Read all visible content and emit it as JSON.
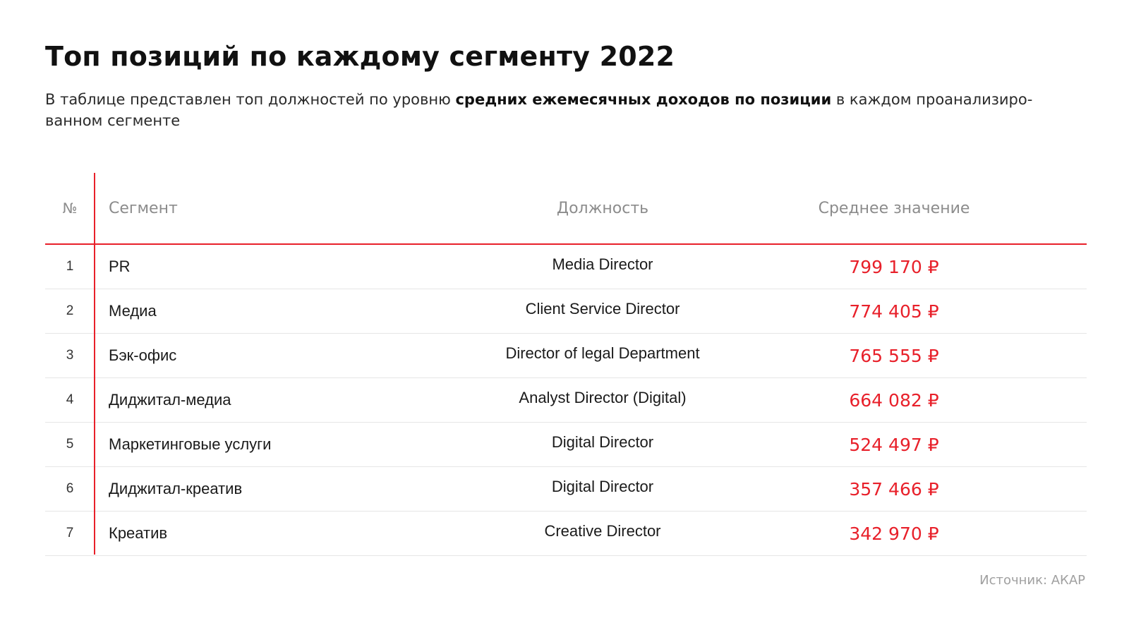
{
  "title": "Топ позиций по каждому сегменту 2022",
  "subtitle": {
    "before": "В таблице представлен топ должностей по уровню ",
    "bold": "средних ежемесячных доходов по позиции",
    "after": " в каждом проанализиро-ванном сегменте"
  },
  "table": {
    "headers": {
      "num": "№",
      "segment": "Сегмент",
      "position": "Должность",
      "value": "Среднее значение"
    },
    "rows": [
      {
        "num": "1",
        "segment": "PR",
        "position": "Media Director",
        "value": "799 170 ₽"
      },
      {
        "num": "2",
        "segment": "Медиа",
        "position": "Client Service Director",
        "value": "774 405 ₽"
      },
      {
        "num": "3",
        "segment": "Бэк-офис",
        "position": "Director of legal Department",
        "value": "765 555 ₽"
      },
      {
        "num": "4",
        "segment": "Диджитал-медиа",
        "position": "Analyst Director (Digital)",
        "value": "664 082 ₽"
      },
      {
        "num": "5",
        "segment": "Маркетинговые услуги",
        "position": "Digital Director",
        "value": "524 497 ₽"
      },
      {
        "num": "6",
        "segment": "Диджитал-креатив",
        "position": "Digital Director",
        "value": "357 466 ₽"
      },
      {
        "num": "7",
        "segment": "Креатив",
        "position": "Creative Director",
        "value": "342 970 ₽"
      }
    ]
  },
  "source": "Источник: АКАР",
  "colors": {
    "accent": "#e8202a",
    "text": "#111111",
    "muted": "#8c8c8c"
  }
}
